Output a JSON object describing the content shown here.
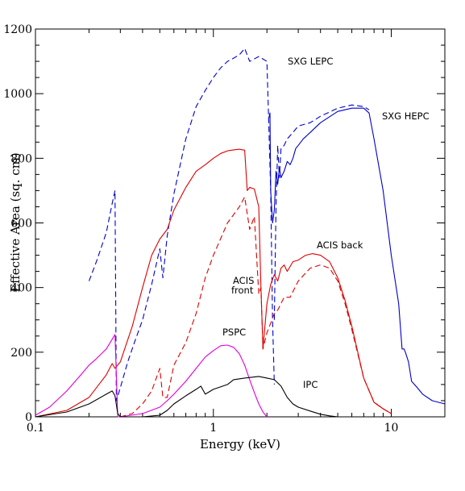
{
  "chart_data": {
    "type": "line",
    "xlabel": "Energy (keV)",
    "ylabel": "Effective Area (sq. cm)",
    "xscale": "log",
    "xlim": [
      0.1,
      20
    ],
    "ylim": [
      0,
      1200
    ],
    "x_tick_labels": [
      {
        "value": 0.1,
        "label": "0.1"
      },
      {
        "value": 1,
        "label": "1"
      },
      {
        "value": 10,
        "label": "10"
      }
    ],
    "y_tick_labels": [
      0,
      200,
      400,
      600,
      800,
      1000,
      1200
    ],
    "grid": false,
    "colors": {
      "blue": "#0000cc",
      "red": "#dd0000",
      "magenta": "#dd00dd",
      "black": "#000000"
    },
    "series": [
      {
        "name": "SXG LEPC",
        "color": "#0000cc",
        "dash": true,
        "x": [
          0.2,
          0.22,
          0.25,
          0.27,
          0.28,
          0.285,
          0.3,
          0.33,
          0.36,
          0.4,
          0.45,
          0.5,
          0.52,
          0.55,
          0.6,
          0.7,
          0.8,
          0.9,
          1.0,
          1.1,
          1.2,
          1.3,
          1.4,
          1.5,
          1.6,
          1.8,
          2.0,
          2.05,
          2.1,
          2.15,
          2.2
        ],
        "y": [
          420,
          480,
          570,
          660,
          700,
          50,
          90,
          170,
          230,
          300,
          410,
          520,
          430,
          560,
          690,
          860,
          960,
          1010,
          1050,
          1080,
          1100,
          1110,
          1120,
          1140,
          1100,
          1115,
          1100,
          900,
          700,
          300,
          100
        ]
      },
      {
        "name": "SXG HEPC",
        "color": "#0000cc",
        "dash": true,
        "x": [
          2.2,
          2.25,
          2.3,
          2.35,
          2.4,
          2.5,
          2.6,
          2.8,
          3.0,
          3.5,
          4.0,
          5.0,
          6.0,
          7.0,
          7.5
        ],
        "y": [
          300,
          650,
          840,
          740,
          830,
          840,
          860,
          880,
          900,
          910,
          930,
          955,
          965,
          960,
          950
        ]
      },
      {
        "name": "SXG HEPC",
        "color": "#0000cc",
        "dash": false,
        "x": [
          2.05,
          2.08,
          2.1,
          2.15,
          2.2,
          2.25,
          2.3,
          2.35,
          2.4,
          2.5,
          2.6,
          2.7,
          2.8,
          2.9,
          3.0,
          3.2,
          3.5,
          4.0,
          5.0,
          6.0,
          7.0,
          7.5,
          8.0,
          9.0,
          10.0,
          11.0,
          11.5,
          11.8,
          12.0,
          12.5,
          13.0,
          14.0,
          15.0,
          17.0,
          20.0
        ],
        "y": [
          925,
          940,
          700,
          600,
          640,
          760,
          720,
          770,
          740,
          760,
          790,
          780,
          800,
          830,
          840,
          860,
          880,
          910,
          945,
          955,
          955,
          940,
          860,
          700,
          500,
          350,
          210,
          210,
          200,
          170,
          110,
          90,
          70,
          50,
          40
        ]
      },
      {
        "name": "ACIS back",
        "color": "#dd0000",
        "dash": false,
        "x": [
          0.1,
          0.15,
          0.2,
          0.25,
          0.27,
          0.28,
          0.3,
          0.35,
          0.4,
          0.45,
          0.5,
          0.55,
          0.6,
          0.7,
          0.8,
          0.9,
          1.0,
          1.1,
          1.2,
          1.3,
          1.4,
          1.5,
          1.55,
          1.6,
          1.7,
          1.8,
          1.85,
          1.9,
          2.0,
          2.1,
          2.2,
          2.3,
          2.4,
          2.5,
          2.6,
          2.8,
          3.0,
          3.3,
          3.6,
          4.0,
          4.5,
          5.0,
          5.5,
          6.0,
          7.0,
          8.0,
          9.0,
          10.0
        ],
        "y": [
          0,
          20,
          60,
          130,
          165,
          150,
          170,
          280,
          400,
          500,
          550,
          580,
          640,
          710,
          760,
          780,
          800,
          815,
          823,
          826,
          828,
          825,
          700,
          710,
          705,
          650,
          400,
          210,
          350,
          410,
          440,
          420,
          460,
          470,
          450,
          480,
          485,
          500,
          505,
          500,
          480,
          430,
          360,
          280,
          120,
          45,
          25,
          10
        ]
      },
      {
        "name": "ACIS front",
        "color": "#dd0000",
        "dash": true,
        "x": [
          0.3,
          0.35,
          0.4,
          0.45,
          0.5,
          0.52,
          0.55,
          0.6,
          0.7,
          0.8,
          0.9,
          1.0,
          1.2,
          1.4,
          1.5,
          1.6,
          1.65,
          1.7,
          1.8,
          1.85,
          1.9,
          2.0,
          2.1,
          2.2,
          2.3,
          2.5,
          2.7,
          3.0,
          3.5,
          4.0,
          4.5,
          5.0,
          5.5,
          6.0,
          7.0,
          8.0,
          9.0,
          10.0
        ],
        "y": [
          0,
          10,
          40,
          80,
          150,
          60,
          60,
          160,
          230,
          320,
          430,
          500,
          600,
          650,
          680,
          580,
          600,
          620,
          380,
          400,
          210,
          260,
          290,
          320,
          330,
          370,
          370,
          420,
          460,
          470,
          460,
          420,
          350,
          270,
          120,
          45,
          25,
          10
        ]
      },
      {
        "name": "PSPC",
        "color": "#dd00dd",
        "dash": false,
        "x": [
          0.1,
          0.12,
          0.15,
          0.18,
          0.2,
          0.22,
          0.25,
          0.27,
          0.28,
          0.29,
          0.3,
          0.4,
          0.5,
          0.55,
          0.6,
          0.7,
          0.8,
          0.9,
          1.0,
          1.1,
          1.2,
          1.3,
          1.4,
          1.5,
          1.6,
          1.7,
          1.8,
          1.9,
          2.0
        ],
        "y": [
          5,
          30,
          80,
          130,
          160,
          180,
          210,
          240,
          255,
          0,
          0,
          10,
          30,
          50,
          70,
          110,
          150,
          185,
          205,
          220,
          222,
          215,
          195,
          160,
          115,
          75,
          40,
          15,
          0
        ]
      },
      {
        "name": "IPC",
        "color": "#000000",
        "dash": false,
        "x": [
          0.1,
          0.15,
          0.2,
          0.25,
          0.27,
          0.28,
          0.29,
          0.3,
          0.4,
          0.5,
          0.55,
          0.6,
          0.7,
          0.8,
          0.85,
          0.9,
          1.0,
          1.2,
          1.3,
          1.5,
          1.8,
          2.0,
          2.2,
          2.4,
          2.6,
          2.8,
          3.0,
          3.5,
          4.0,
          4.5,
          5.0
        ],
        "y": [
          0,
          15,
          40,
          70,
          80,
          65,
          10,
          0,
          0,
          5,
          20,
          40,
          65,
          85,
          95,
          70,
          85,
          100,
          115,
          120,
          125,
          120,
          115,
          95,
          60,
          40,
          30,
          18,
          8,
          3,
          0
        ]
      }
    ],
    "labels": {
      "sxg_lepc": "SXG LEPC",
      "sxg_hepc": "SXG HEPC",
      "acis_back": "ACIS back",
      "acis_front_1": "ACIS",
      "acis_front_2": "front",
      "pspc": "PSPC",
      "ipc": "IPC"
    }
  }
}
